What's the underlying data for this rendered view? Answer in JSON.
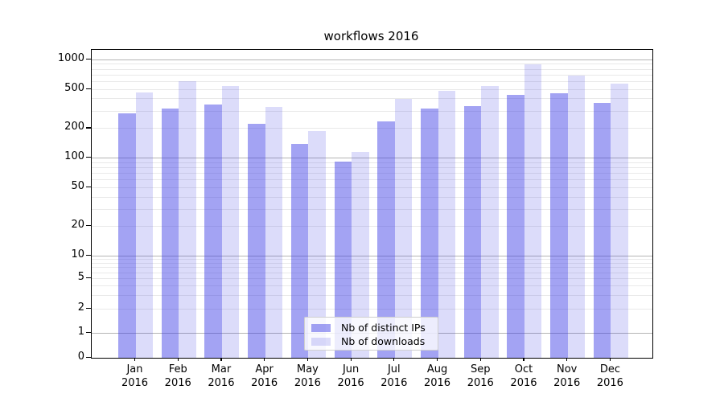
{
  "title": "workflows 2016",
  "chart_data": {
    "type": "bar",
    "title": "workflows 2016",
    "categories": [
      "Jan",
      "Feb",
      "Mar",
      "Apr",
      "May",
      "Jun",
      "Jul",
      "Aug",
      "Sep",
      "Oct",
      "Nov",
      "Dec"
    ],
    "category_year": "2016",
    "series": [
      {
        "name": "Nb of distinct IPs",
        "color": "rgba(60,60,230,0.47)",
        "values": [
          285,
          320,
          350,
          225,
          140,
          92,
          235,
          320,
          335,
          440,
          455,
          365
        ]
      },
      {
        "name": "Nb of downloads",
        "color": "rgba(60,60,230,0.18)",
        "values": [
          465,
          610,
          540,
          330,
          190,
          115,
          400,
          485,
          540,
          900,
          690,
          575
        ]
      }
    ],
    "yscale": "symlog",
    "yticks": [
      0,
      1,
      2,
      5,
      10,
      20,
      50,
      100,
      200,
      500,
      1000
    ],
    "ylim": [
      0,
      1250
    ],
    "minor_gridlines": [
      2,
      3,
      4,
      5,
      6,
      7,
      8,
      9,
      20,
      30,
      40,
      50,
      60,
      70,
      80,
      90,
      200,
      300,
      400,
      500,
      600,
      700,
      800,
      900
    ],
    "major_gridlines": [
      1,
      10,
      100,
      1000
    ],
    "grid": "both",
    "legend_position": "lower center"
  },
  "colors": {
    "bar_dark": "rgba(60,60,230,0.47)",
    "bar_light": "rgba(60,60,230,0.18)",
    "grid_minor": "#e9e9e9",
    "grid_major": "#b4b4b4",
    "spine": "#000000",
    "background": "#ffffff"
  }
}
